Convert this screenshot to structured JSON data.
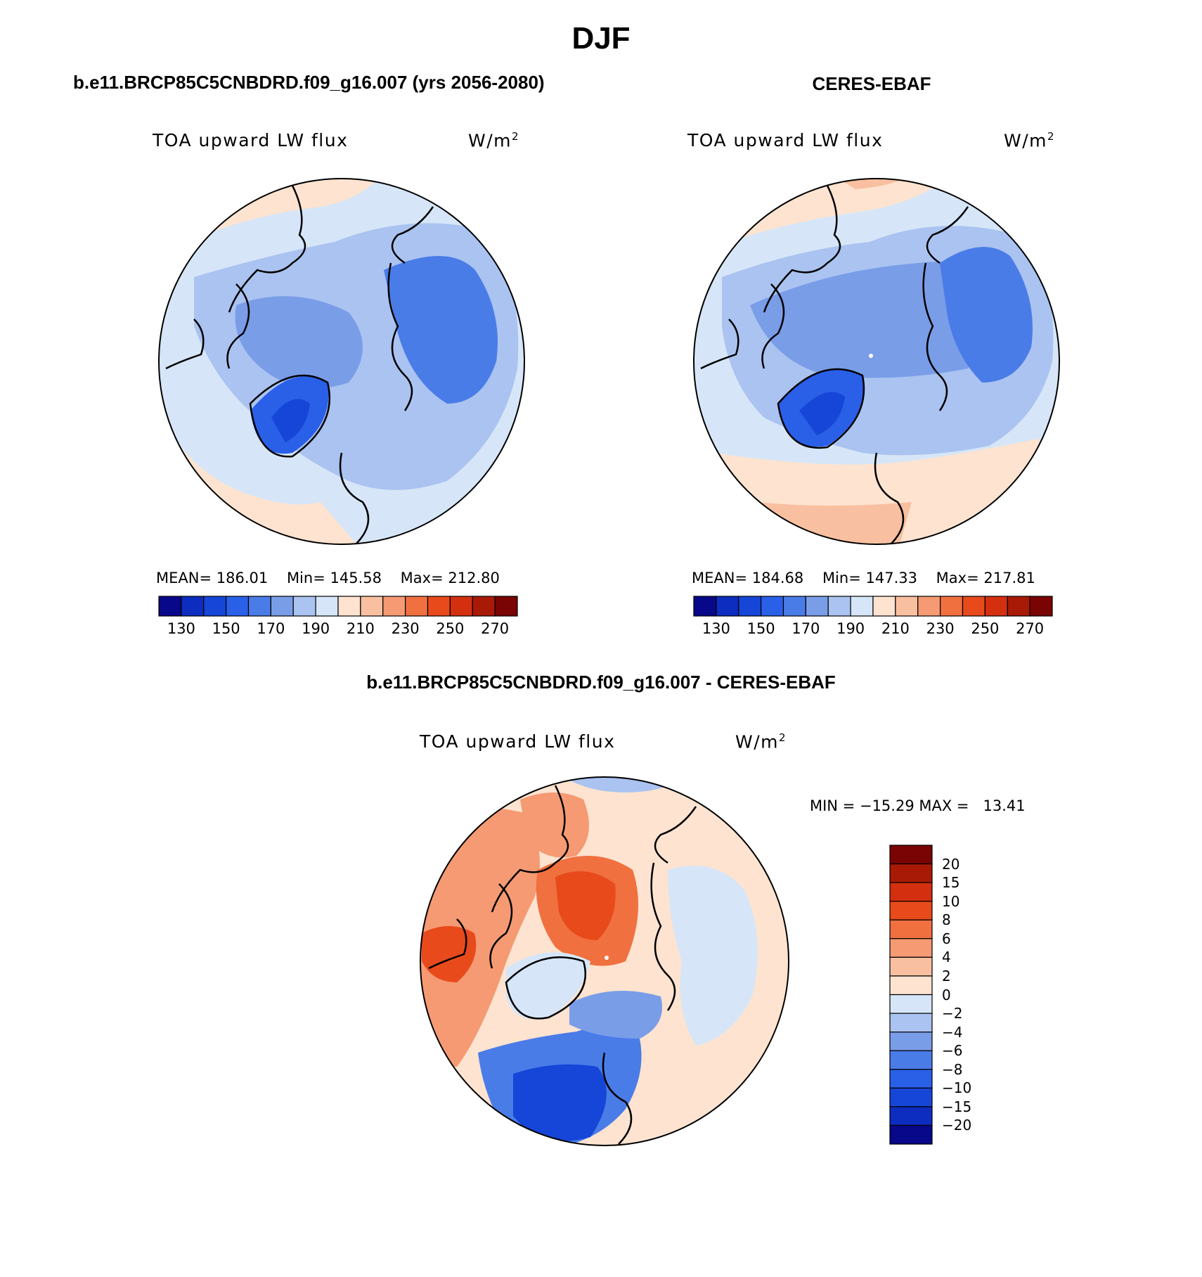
{
  "figure": {
    "title": "DJF",
    "left_header": "b.e11.BRCP85C5CNBDRD.f09_g16.007 (yrs 2056-2080)",
    "right_header": "CERES-EBAF",
    "diff_header": "b.e11.BRCP85C5CNBDRD.f09_g16.007 - CERES-EBAF"
  },
  "chart_data": [
    {
      "type": "heatmap",
      "projection": "north polar stereographic",
      "title": "b.e11.BRCP85C5CNBDRD.f09_g16.007 (yrs 2056-2080)",
      "variable": "TOA upward LW flux",
      "units": "W/m",
      "units_exp": "2",
      "stats": {
        "mean_label": "MEAN=",
        "mean": "186.01",
        "min_label": "Min=",
        "min": "145.58",
        "max_label": "Max=",
        "max": "212.80"
      },
      "colorbar": {
        "orientation": "horizontal",
        "levels": [
          130,
          140,
          150,
          160,
          170,
          180,
          190,
          200,
          210,
          220,
          230,
          240,
          250,
          260,
          270
        ],
        "tick_labels": [
          "130",
          "150",
          "170",
          "190",
          "210",
          "230",
          "250",
          "270"
        ],
        "colors": [
          "#08088a",
          "#0c2dbf",
          "#1546d8",
          "#2a5fe8",
          "#4a7ce8",
          "#7a9de8",
          "#aac3f0",
          "#d6e6f8",
          "#fde3d0",
          "#f8c0a0",
          "#f59a72",
          "#f0703f",
          "#e84a1c",
          "#d43010",
          "#a81a06",
          "#7a0303"
        ]
      }
    },
    {
      "type": "heatmap",
      "projection": "north polar stereographic",
      "title": "CERES-EBAF",
      "variable": "TOA upward LW flux",
      "units": "W/m",
      "units_exp": "2",
      "stats": {
        "mean_label": "MEAN=",
        "mean": "184.68",
        "min_label": "Min=",
        "min": "147.33",
        "max_label": "Max=",
        "max": "217.81"
      },
      "colorbar": {
        "orientation": "horizontal",
        "levels": [
          130,
          140,
          150,
          160,
          170,
          180,
          190,
          200,
          210,
          220,
          230,
          240,
          250,
          260,
          270
        ],
        "tick_labels": [
          "130",
          "150",
          "170",
          "190",
          "210",
          "230",
          "250",
          "270"
        ],
        "colors": [
          "#08088a",
          "#0c2dbf",
          "#1546d8",
          "#2a5fe8",
          "#4a7ce8",
          "#7a9de8",
          "#aac3f0",
          "#d6e6f8",
          "#fde3d0",
          "#f8c0a0",
          "#f59a72",
          "#f0703f",
          "#e84a1c",
          "#d43010",
          "#a81a06",
          "#7a0303"
        ]
      }
    },
    {
      "type": "heatmap",
      "projection": "north polar stereographic",
      "title": "b.e11.BRCP85C5CNBDRD.f09_g16.007 - CERES-EBAF",
      "variable": "TOA upward LW flux",
      "units": "W/m",
      "units_exp": "2",
      "stats_text": "MIN = −15.29 MAX =   13.41",
      "colorbar": {
        "orientation": "vertical",
        "levels": [
          20,
          15,
          10,
          8,
          6,
          4,
          2,
          0,
          -2,
          -4,
          -6,
          -8,
          -10,
          -15,
          -20
        ],
        "tick_labels": [
          "20",
          "15",
          "10",
          "8",
          "6",
          "4",
          "2",
          "0",
          "−2",
          "−4",
          "−6",
          "−8",
          "−10",
          "−15",
          "−20"
        ],
        "colors": [
          "#7a0303",
          "#a81a06",
          "#d43010",
          "#e84a1c",
          "#f0703f",
          "#f59a72",
          "#f8c0a0",
          "#fde3d0",
          "#d6e6f8",
          "#aac3f0",
          "#7a9de8",
          "#4a7ce8",
          "#2a5fe8",
          "#1546d8",
          "#0c2dbf",
          "#08088a"
        ]
      }
    }
  ]
}
